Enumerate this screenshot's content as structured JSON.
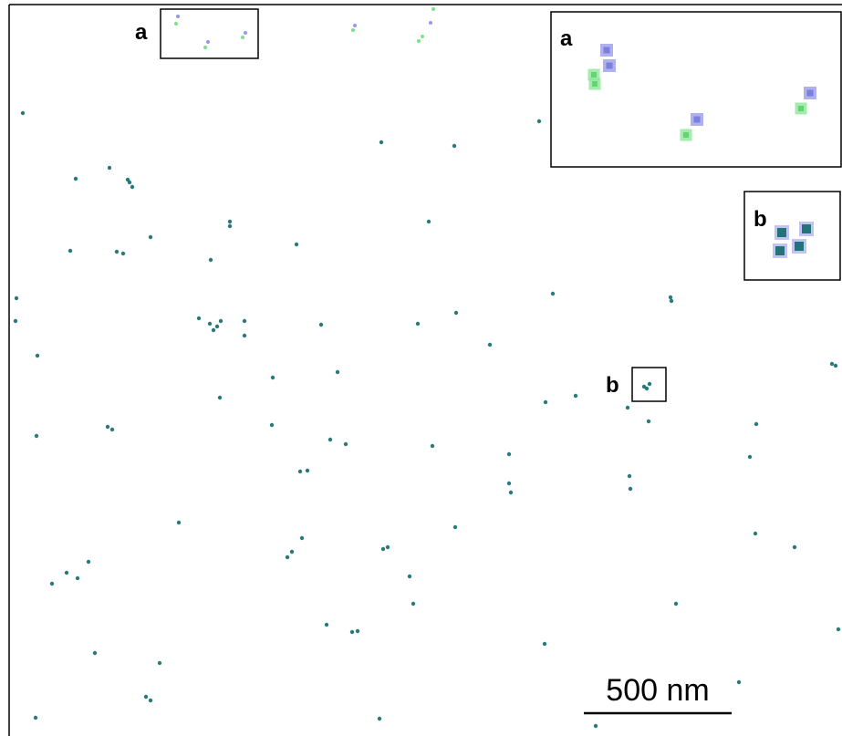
{
  "regions": [
    {
      "label": "a"
    },
    {
      "label": "b"
    }
  ],
  "insets": [
    {
      "label": "a"
    },
    {
      "label": "b"
    }
  ],
  "scale_bar": {
    "label": "500 nm"
  }
}
